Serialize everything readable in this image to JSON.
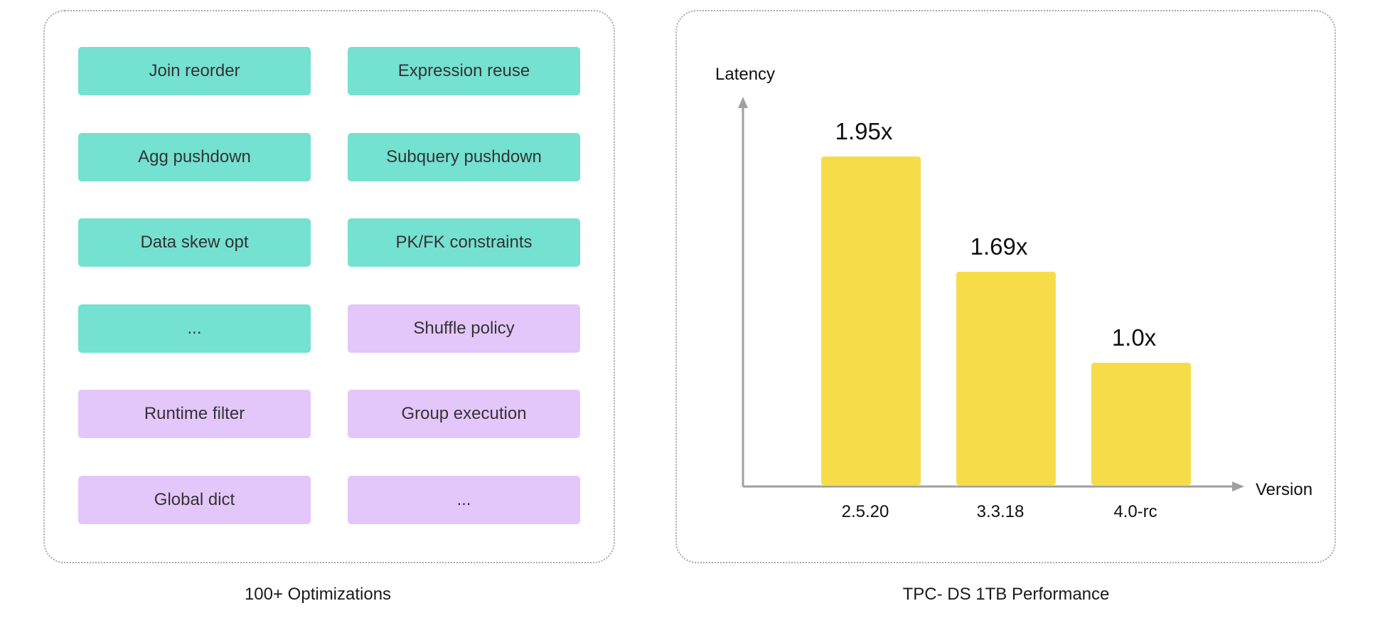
{
  "optimizations": {
    "caption": "100+  Optimizations",
    "items": [
      {
        "label": "Join reorder",
        "category": "teal"
      },
      {
        "label": "Expression reuse",
        "category": "teal"
      },
      {
        "label": "Agg pushdown",
        "category": "teal"
      },
      {
        "label": "Subquery pushdown",
        "category": "teal"
      },
      {
        "label": "Data skew opt",
        "category": "teal"
      },
      {
        "label": "PK/FK constraints",
        "category": "teal"
      },
      {
        "label": "...",
        "category": "teal"
      },
      {
        "label": "Shuffle policy",
        "category": "lilac"
      },
      {
        "label": "Runtime filter",
        "category": "lilac"
      },
      {
        "label": "Group execution",
        "category": "lilac"
      },
      {
        "label": "Global dict",
        "category": "lilac"
      },
      {
        "label": "...",
        "category": "lilac"
      }
    ]
  },
  "colors": {
    "teal": "#75E1D0",
    "lilac": "#E3C6FA",
    "bar": "#F7DC4A",
    "axis": "#a0a0a0"
  },
  "chart_data": {
    "type": "bar",
    "title": "TPC- DS 1TB Performance",
    "xlabel": "Version",
    "ylabel": "Latency",
    "categories": [
      "2.5.20",
      "3.3.18",
      "4.0-rc"
    ],
    "values": [
      1.95,
      1.69,
      1.0
    ],
    "data_labels": [
      "1.95x",
      "1.69x",
      "1.0x"
    ],
    "grid": false
  }
}
